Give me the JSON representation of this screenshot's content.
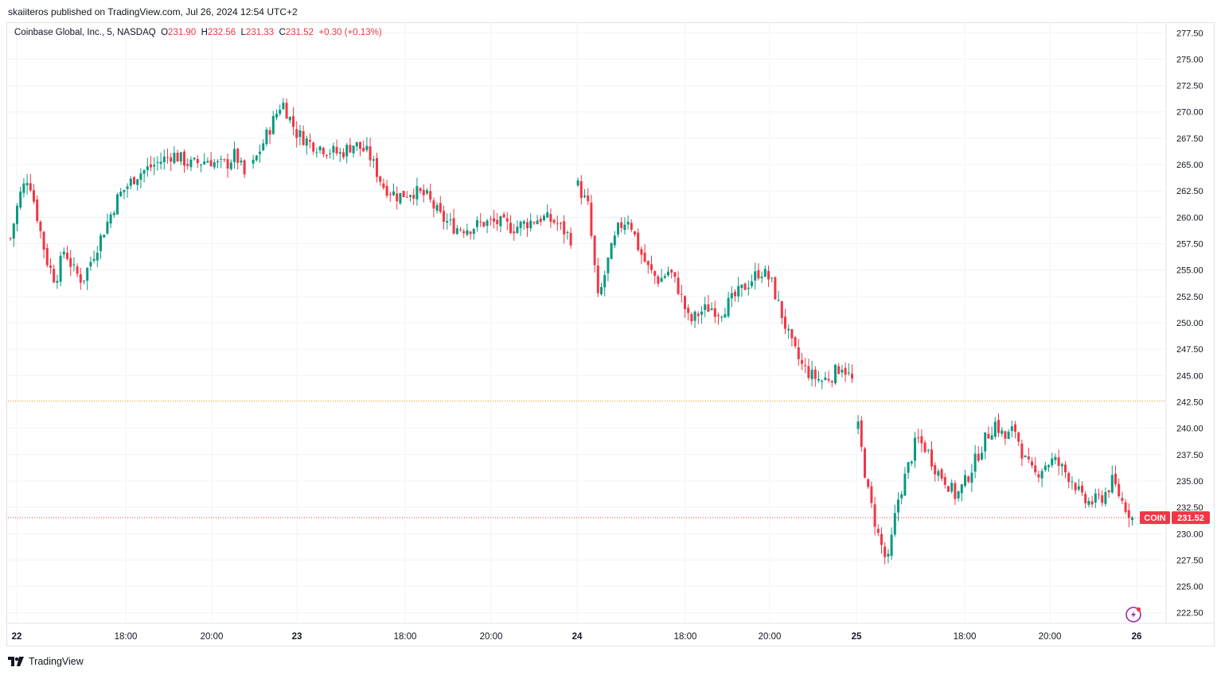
{
  "header": {
    "published_by": "skaiiteros published on TradingView.com, Jul 26, 2024 12:54 UTC+2"
  },
  "legend": {
    "symbol": "Coinbase Global, Inc., 5, NASDAQ",
    "o_label": "O",
    "o_value": "231.90",
    "h_label": "H",
    "h_value": "232.56",
    "l_label": "L",
    "l_value": "231.33",
    "c_label": "C",
    "c_value": "231.52",
    "change": "+0.30 (+0.13%)"
  },
  "price_tag": {
    "ticker": "COIN",
    "price": "231.52"
  },
  "footer": {
    "brand": "TradingView"
  },
  "colors": {
    "up": "#089981",
    "down": "#f23645",
    "grid": "#f0f3fa",
    "prev_close_line": "#ff9800",
    "last_price_line": "#f23645"
  },
  "chart_data": {
    "type": "candlestick",
    "ylim": [
      221.5,
      278.5
    ],
    "y_ticks": [
      "277.50",
      "275.00",
      "272.50",
      "270.00",
      "267.50",
      "265.00",
      "262.50",
      "260.00",
      "257.50",
      "255.00",
      "252.50",
      "250.00",
      "247.50",
      "245.00",
      "242.50",
      "240.00",
      "237.50",
      "235.00",
      "232.50",
      "230.00",
      "227.50",
      "225.00",
      "222.50"
    ],
    "x_ticks": [
      {
        "label": "22",
        "day": true
      },
      {
        "label": "18:00",
        "day": false
      },
      {
        "label": "20:00",
        "day": false
      },
      {
        "label": "23",
        "day": true
      },
      {
        "label": "18:00",
        "day": false
      },
      {
        "label": "20:00",
        "day": false
      },
      {
        "label": "24",
        "day": true
      },
      {
        "label": "18:00",
        "day": false
      },
      {
        "label": "20:00",
        "day": false
      },
      {
        "label": "25",
        "day": true
      },
      {
        "label": "18:00",
        "day": false
      },
      {
        "label": "20:00",
        "day": false
      },
      {
        "label": "26",
        "day": true
      }
    ],
    "horizontal_lines": [
      {
        "name": "previous-close",
        "value": 242.6
      },
      {
        "name": "last-price",
        "value": 231.52
      }
    ],
    "sessions": [
      {
        "label": "Jul 22",
        "path": [
          258,
          262,
          264,
          260,
          256,
          254,
          257,
          255,
          254,
          256,
          258,
          260,
          262,
          263,
          264,
          264.5,
          265,
          265.5,
          266,
          265.5,
          265,
          265.2,
          265.5,
          265,
          265,
          266,
          264
        ]
      },
      {
        "label": "Jul 23",
        "path": [
          265,
          268,
          271,
          268,
          267,
          266.5,
          266,
          267,
          266,
          263,
          262,
          262.5,
          262,
          260,
          259,
          259,
          259.5,
          259.5,
          259,
          259.5,
          260,
          259.5,
          258
        ]
      },
      {
        "label": "Jul 24",
        "path": [
          263,
          261,
          252,
          256,
          259,
          260,
          257,
          255,
          254,
          255,
          253,
          250,
          251,
          251.5,
          251,
          252,
          253,
          254,
          255,
          254,
          251,
          248,
          246,
          245,
          244.5,
          245,
          246,
          244.5
        ]
      },
      {
        "label": "Jul 25",
        "path": [
          240,
          234,
          230,
          227,
          233,
          236,
          239,
          238,
          236,
          235,
          233.5,
          235,
          237,
          239,
          240.5,
          239,
          240,
          237,
          235.5,
          236.5,
          237,
          236,
          235,
          233,
          233,
          233.5,
          235,
          233,
          231.52
        ]
      }
    ]
  }
}
